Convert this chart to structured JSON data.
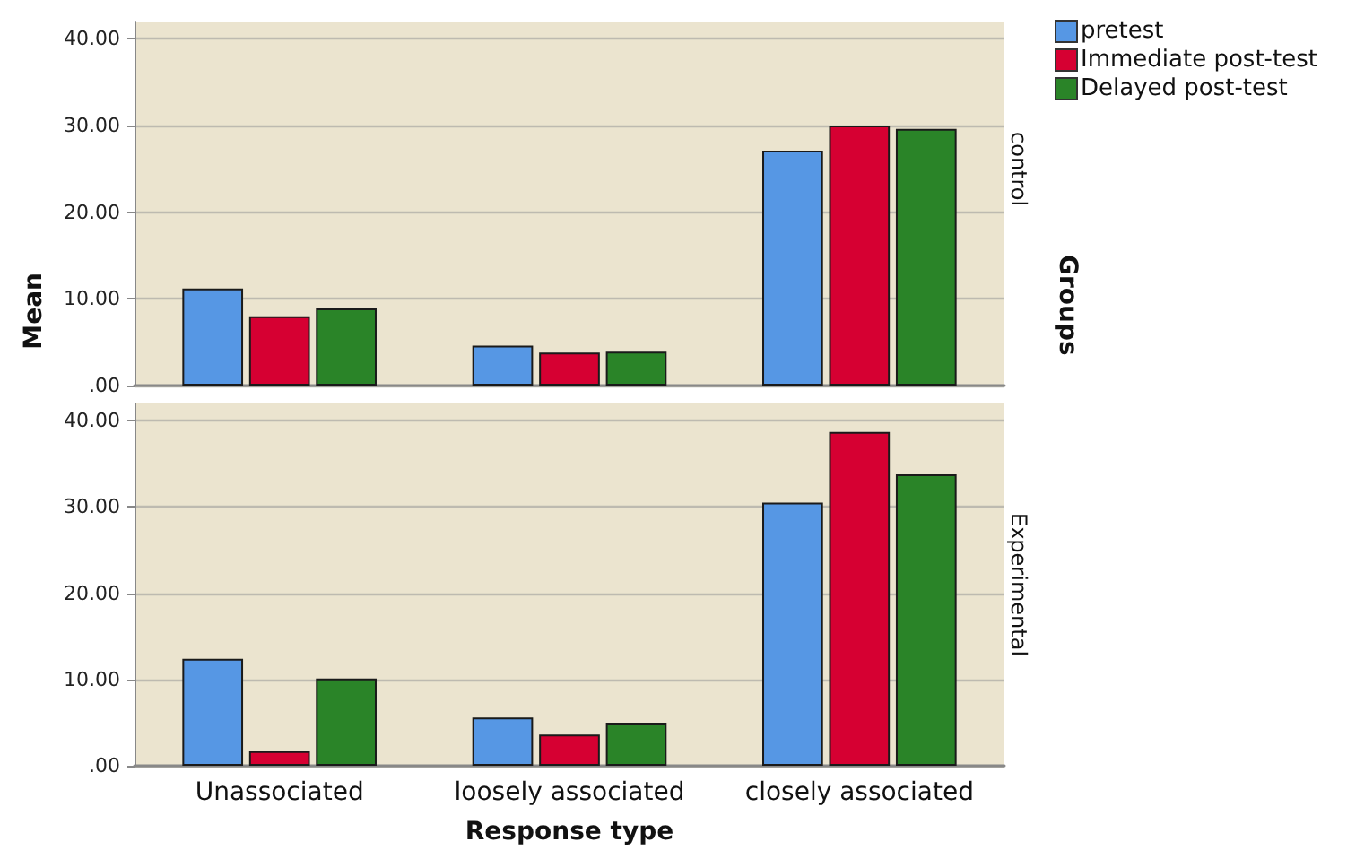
{
  "chart_data": [
    {
      "type": "bar",
      "subtitle": "control",
      "ylabel": "Mean",
      "annotations": [
        "Groups"
      ],
      "categories": [
        null,
        null,
        null
      ],
      "series": [
        {
          "name": "pretest",
          "color": "#5697e4",
          "values": [
            11.2,
            4.6,
            27.1
          ]
        },
        {
          "name": "Immediate post-test",
          "color": "#d60032",
          "values": [
            8.0,
            3.8,
            30.0
          ]
        },
        {
          "name": "Delayed post-test",
          "color": "#2a8428",
          "values": [
            8.9,
            3.9,
            29.6
          ]
        }
      ],
      "ylim": [
        0,
        42
      ],
      "yticks": [
        {
          "value": 0,
          "label": ".00"
        },
        {
          "value": 10,
          "label": "10.00"
        },
        {
          "value": 20,
          "label": "20.00"
        },
        {
          "value": 30,
          "label": "30.00"
        },
        {
          "value": 40,
          "label": "40.00"
        }
      ],
      "grid": "y",
      "legend": "top right",
      "tick_labels": "y"
    },
    {
      "type": "bar",
      "subtitle": "Experimental",
      "xlabel": "Response type",
      "categories": [
        "Unassociated",
        "loosely associated",
        "closely associated"
      ],
      "series": [
        {
          "color": "#5697e4",
          "values": [
            12.4,
            5.6,
            30.5
          ]
        },
        {
          "color": "#d60032",
          "values": [
            1.7,
            3.6,
            38.7
          ]
        },
        {
          "color": "#2a8428",
          "values": [
            10.1,
            5.0,
            33.8
          ]
        }
      ],
      "ylim": [
        0,
        42
      ],
      "yticks": [
        {
          "value": 0,
          "label": ".00"
        },
        {
          "value": 10,
          "label": "10.00"
        },
        {
          "value": 20,
          "label": "20.00"
        },
        {
          "value": 30,
          "label": "30.00"
        },
        {
          "value": 40,
          "label": "40.00"
        }
      ],
      "grid": "y"
    }
  ]
}
